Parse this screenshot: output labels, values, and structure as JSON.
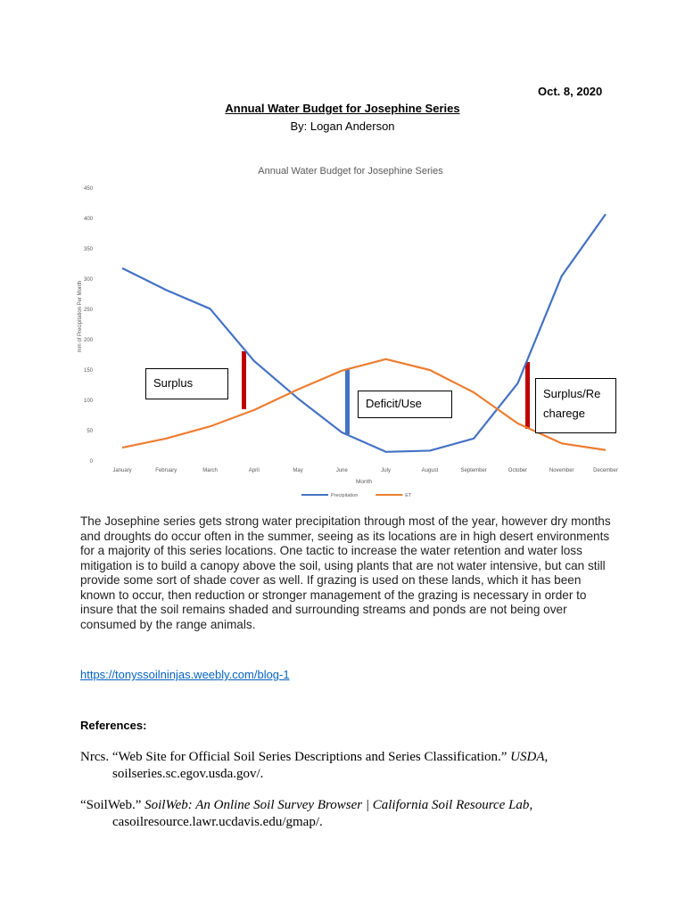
{
  "date": "Oct. 8, 2020",
  "title": "Annual Water Budget for Josephine Series",
  "byline": "By: Logan Anderson",
  "chart_data": {
    "type": "line",
    "title": "Annual Water Budget for Josephine Series",
    "x_label": "Month",
    "y_label": "mm of Precipitation Per Month",
    "categories": [
      "January",
      "February",
      "March",
      "April",
      "May",
      "June",
      "July",
      "August",
      "September",
      "October",
      "November",
      "December"
    ],
    "series": [
      {
        "name": "Precipitation",
        "color": "#4472c4",
        "values": [
          318,
          282,
          251,
          165,
          103,
          47,
          15,
          17,
          37,
          128,
          305,
          407
        ]
      },
      {
        "name": "ET",
        "color": "#ed7d31",
        "values": [
          22,
          37,
          57,
          84,
          118,
          149,
          168,
          150,
          113,
          62,
          29,
          18
        ]
      }
    ],
    "ylim": [
      0,
      450
    ],
    "yticks": [
      0,
      50,
      100,
      150,
      200,
      250,
      300,
      350,
      400,
      450
    ],
    "annotations": [
      "Surplus",
      "Deficit/Use",
      "Surplus/Re charege"
    ],
    "legend": "bottom"
  },
  "paragraph": "The Josephine series gets strong water precipitation through most of the year, however dry months and droughts do occur often in the summer, seeing as its locations are in high desert environments for a majority of this series locations. One tactic to increase the water retention and water loss mitigation is to build a canopy above the soil, using plants that are not water intensive, but can still provide some sort of shade cover as well. If grazing is used on these lands, which it has been known to occur, then reduction or stronger management of the grazing is necessary in order to insure that the soil remains shaded and surrounding streams and ponds are not being over consumed by the range animals.",
  "link": "https://tonyssoilninjas.weebly.com/blog-1",
  "references_heading": "References:",
  "references": [
    {
      "before": "Nrcs. “Web Site for Official Soil Series Descriptions and Series Classification.” ",
      "italic": "USDA",
      "after": ", soilseries.sc.egov.usda.gov/."
    },
    {
      "before": "“SoilWeb.” ",
      "italic": "SoilWeb: An Online Soil Survey Browser | California Soil Resource Lab",
      "after": ", casoilresource.lawr.ucdavis.edu/gmap/."
    }
  ]
}
